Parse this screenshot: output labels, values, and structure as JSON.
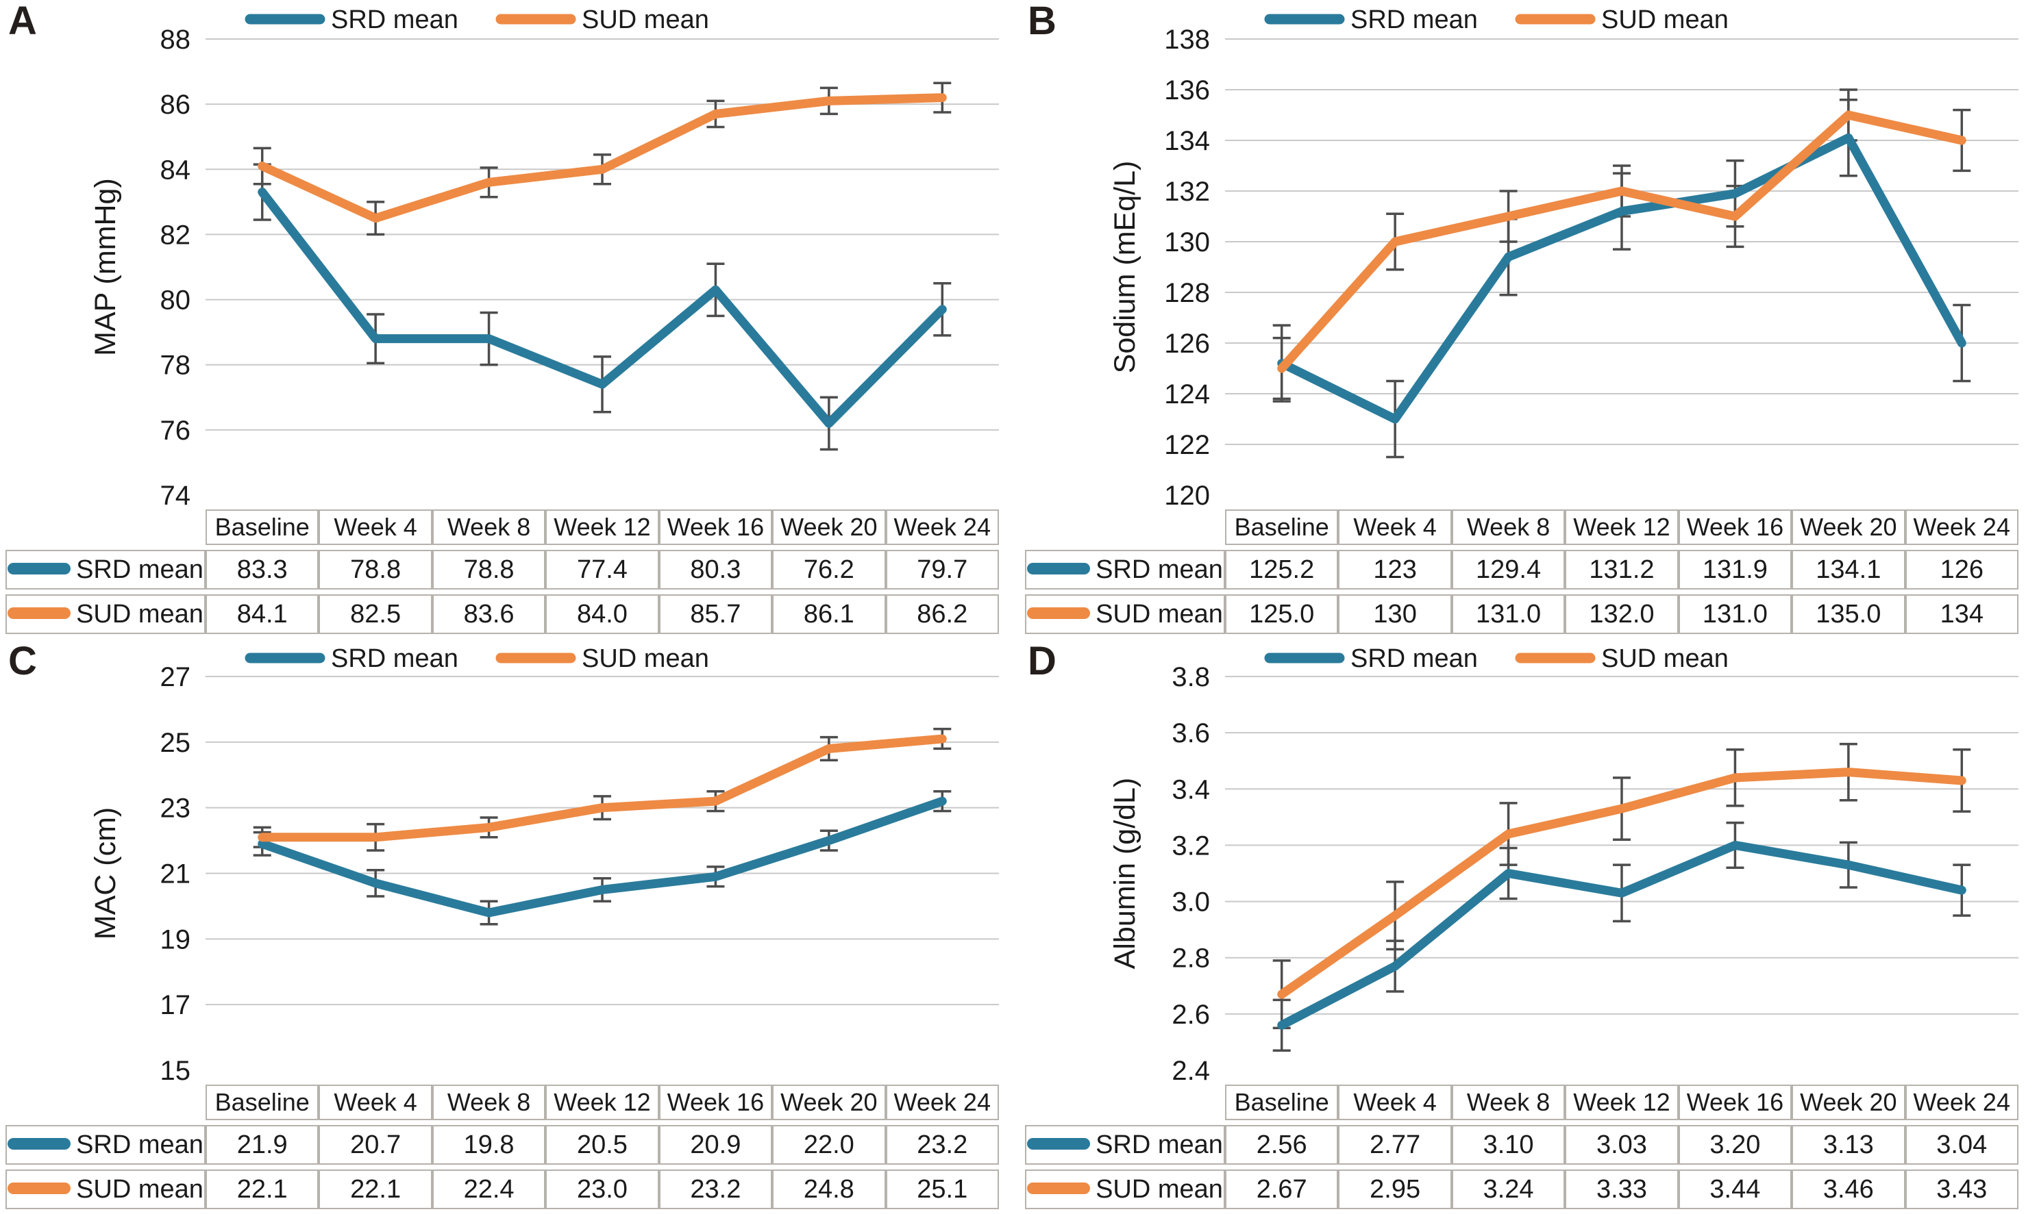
{
  "figure": {
    "background": "#ffffff",
    "text_color": "#1a1a1a",
    "gridline_color": "#c9c9c9",
    "error_bar_color": "#4d4d4d",
    "table_border_color": "#b6b2ac"
  },
  "legend": {
    "srd_label": "SRD mean",
    "sud_label": "SUD mean"
  },
  "colors": {
    "srd": "#2a7b9b",
    "sud": "#ee8a44"
  },
  "chart_data": [
    {
      "type": "line",
      "id": "A",
      "ylabel": "MAP (mmHg)",
      "ylim": [
        74,
        88
      ],
      "yticks": [
        "74",
        "76",
        "78",
        "80",
        "82",
        "84",
        "86",
        "88"
      ],
      "grid": "horizontal",
      "legend_position": "top",
      "categories": [
        "Baseline",
        "Week 4",
        "Week 8",
        "Week 12",
        "Week 16",
        "Week 20",
        "Week 24"
      ],
      "series": [
        {
          "name": "SRD mean",
          "color": "#2a7b9b",
          "values": [
            83.3,
            78.8,
            78.8,
            77.4,
            80.3,
            76.2,
            79.7
          ],
          "display": [
            "83.3",
            "78.8",
            "78.8",
            "77.4",
            "80.3",
            "76.2",
            "79.7"
          ],
          "errors": [
            0.85,
            0.75,
            0.8,
            0.85,
            0.8,
            0.8,
            0.8
          ]
        },
        {
          "name": "SUD mean",
          "color": "#ee8a44",
          "values": [
            84.1,
            82.5,
            83.6,
            84.0,
            85.7,
            86.1,
            86.2
          ],
          "display": [
            "84.1",
            "82.5",
            "83.6",
            "84.0",
            "85.7",
            "86.1",
            "86.2"
          ],
          "errors": [
            0.55,
            0.5,
            0.45,
            0.45,
            0.4,
            0.4,
            0.45
          ]
        }
      ]
    },
    {
      "type": "line",
      "id": "B",
      "ylabel": "Sodium (mEq/L)",
      "ylim": [
        120,
        138
      ],
      "yticks": [
        "120",
        "122",
        "124",
        "126",
        "128",
        "130",
        "132",
        "134",
        "136",
        "138"
      ],
      "grid": "horizontal",
      "legend_position": "top",
      "categories": [
        "Baseline",
        "Week 4",
        "Week 8",
        "Week 12",
        "Week 16",
        "Week 20",
        "Week 24"
      ],
      "series": [
        {
          "name": "SRD mean",
          "color": "#2a7b9b",
          "values": [
            125.2,
            123,
            129.4,
            131.2,
            131.9,
            134.1,
            126
          ],
          "display": [
            "125.2",
            "123",
            "129.4",
            "131.2",
            "131.9",
            "134.1",
            "126"
          ],
          "errors": [
            1.5,
            1.5,
            1.5,
            1.5,
            1.3,
            1.5,
            1.5
          ]
        },
        {
          "name": "SUD mean",
          "color": "#ee8a44",
          "values": [
            125.0,
            130,
            131.0,
            132.0,
            131.0,
            135.0,
            134
          ],
          "display": [
            "125.0",
            "130",
            "131.0",
            "132.0",
            "131.0",
            "135.0",
            "134"
          ],
          "errors": [
            1.2,
            1.1,
            1.0,
            1.0,
            1.2,
            1.0,
            1.2
          ]
        }
      ]
    },
    {
      "type": "line",
      "id": "C",
      "ylabel": "MAC (cm)",
      "ylim": [
        15,
        27
      ],
      "yticks": [
        "15",
        "17",
        "19",
        "21",
        "23",
        "25",
        "27"
      ],
      "grid": "horizontal",
      "legend_position": "top",
      "categories": [
        "Baseline",
        "Week 4",
        "Week 8",
        "Week 12",
        "Week 16",
        "Week 20",
        "Week 24"
      ],
      "series": [
        {
          "name": "SRD mean",
          "color": "#2a7b9b",
          "values": [
            21.9,
            20.7,
            19.8,
            20.5,
            20.9,
            22.0,
            23.2
          ],
          "display": [
            "21.9",
            "20.7",
            "19.8",
            "20.5",
            "20.9",
            "22.0",
            "23.2"
          ],
          "errors": [
            0.35,
            0.4,
            0.35,
            0.35,
            0.3,
            0.3,
            0.3
          ]
        },
        {
          "name": "SUD mean",
          "color": "#ee8a44",
          "values": [
            22.1,
            22.1,
            22.4,
            23.0,
            23.2,
            24.8,
            25.1
          ],
          "display": [
            "22.1",
            "22.1",
            "22.4",
            "23.0",
            "23.2",
            "24.8",
            "25.1"
          ],
          "errors": [
            0.3,
            0.4,
            0.3,
            0.35,
            0.3,
            0.35,
            0.3
          ]
        }
      ]
    },
    {
      "type": "line",
      "id": "D",
      "ylabel": "Albumin (g/dL)",
      "ylim": [
        2.4,
        3.8
      ],
      "yticks": [
        "2.4",
        "2.6",
        "2.8",
        "3.0",
        "3.2",
        "3.4",
        "3.6",
        "3.8"
      ],
      "grid": "horizontal",
      "legend_position": "top",
      "categories": [
        "Baseline",
        "Week 4",
        "Week 8",
        "Week 12",
        "Week 16",
        "Week 20",
        "Week 24"
      ],
      "series": [
        {
          "name": "SRD mean",
          "color": "#2a7b9b",
          "values": [
            2.56,
            2.77,
            3.1,
            3.03,
            3.2,
            3.13,
            3.04
          ],
          "display": [
            "2.56",
            "2.77",
            "3.10",
            "3.03",
            "3.20",
            "3.13",
            "3.04"
          ],
          "errors": [
            0.09,
            0.09,
            0.09,
            0.1,
            0.08,
            0.08,
            0.09
          ]
        },
        {
          "name": "SUD mean",
          "color": "#ee8a44",
          "values": [
            2.67,
            2.95,
            3.24,
            3.33,
            3.44,
            3.46,
            3.43
          ],
          "display": [
            "2.67",
            "2.95",
            "3.24",
            "3.33",
            "3.44",
            "3.46",
            "3.43"
          ],
          "errors": [
            0.12,
            0.12,
            0.11,
            0.11,
            0.1,
            0.1,
            0.11
          ]
        }
      ]
    }
  ]
}
